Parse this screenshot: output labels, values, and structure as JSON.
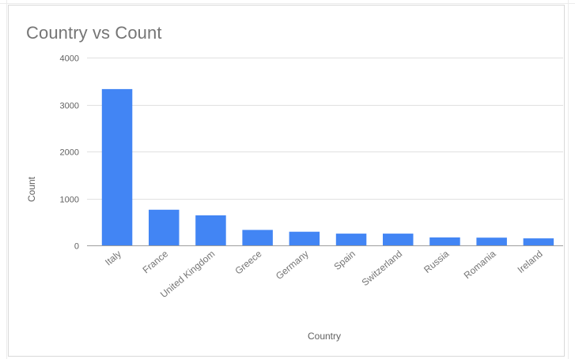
{
  "chart": {
    "title": "Country vs Count"
  },
  "colors": {
    "bar": "#4285f4",
    "grid": "#e0e0e0",
    "baseline": "#9e9e9e",
    "text": "#616161"
  },
  "chart_data": {
    "type": "bar",
    "title": "Country vs Count",
    "xlabel": "Country",
    "ylabel": "Count",
    "categories": [
      "Italy",
      "France",
      "United Kingdom",
      "Greece",
      "Germany",
      "Spain",
      "Switzerland",
      "Russia",
      "Romania",
      "Ireland"
    ],
    "values": [
      3330,
      760,
      640,
      330,
      290,
      250,
      250,
      170,
      165,
      150
    ],
    "ylim": [
      0,
      4000
    ],
    "yticks": [
      0,
      1000,
      2000,
      3000,
      4000
    ],
    "grid": true,
    "legend": "none"
  }
}
